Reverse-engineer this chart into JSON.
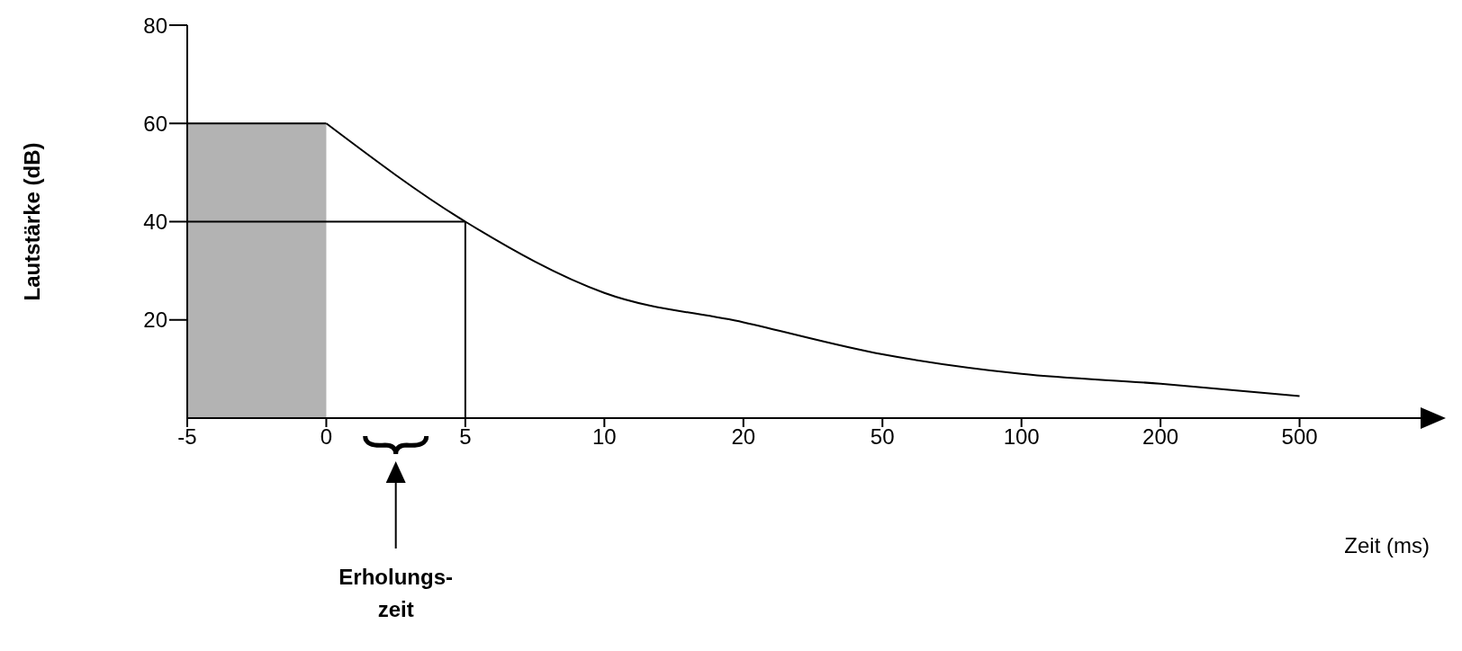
{
  "chart_data": {
    "type": "line",
    "xlabel": "Zeit (ms)",
    "ylabel": "Lautstärke (dB)",
    "categories": [
      "-5",
      "0",
      "5",
      "10",
      "20",
      "50",
      "100",
      "200",
      "500"
    ],
    "series": [
      {
        "type": "area",
        "color": "#b3b3b3",
        "values": [
          60,
          60,
          null,
          null,
          null,
          null,
          null,
          null,
          null
        ]
      },
      {
        "color": "#000000",
        "values": [
          null,
          60,
          40,
          25.5,
          19.5,
          13,
          9,
          7,
          4.5
        ]
      }
    ],
    "ylim": [
      0,
      80
    ],
    "yticks": [
      20,
      40,
      60,
      80
    ],
    "ref_lines": [
      {
        "axis": "y",
        "value": 40
      },
      {
        "axis": "x",
        "value": "5"
      }
    ],
    "annotations": [
      "Erholungs-\nzeit"
    ]
  }
}
